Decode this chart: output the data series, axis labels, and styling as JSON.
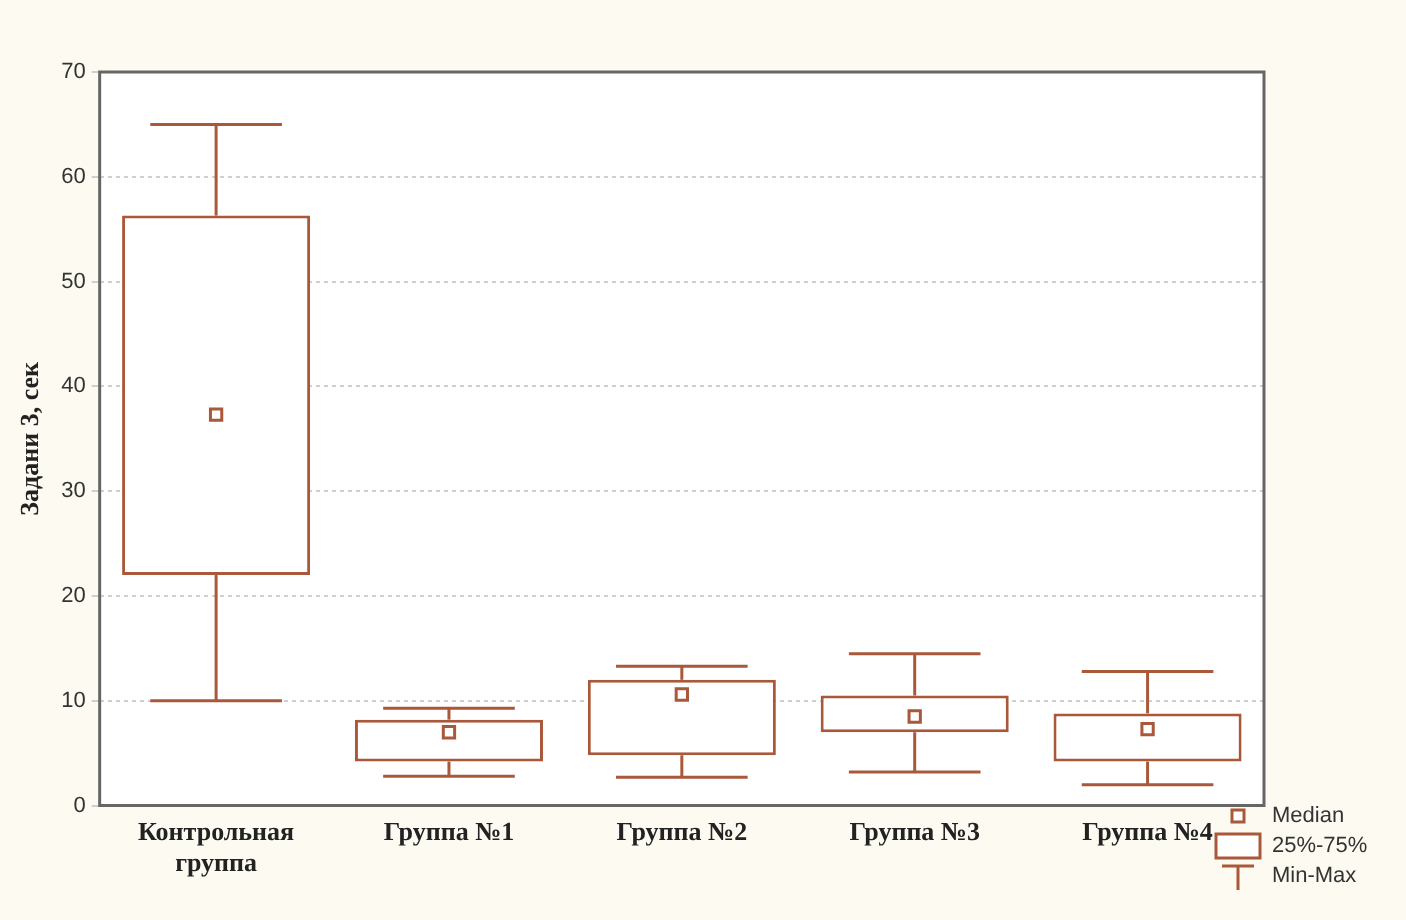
{
  "chart_data": {
    "type": "box",
    "ylabel": "Задани 3, сек",
    "categories": [
      "Контрольная группа",
      "Группа №1",
      "Группа №2",
      "Группа №3",
      "Группа №4"
    ],
    "boxes": [
      {
        "low": 10,
        "q1": 22,
        "median": 37.3,
        "q3": 56.3,
        "high": 65
      },
      {
        "low": 2.8,
        "q1": 4.2,
        "median": 7,
        "q3": 8.2,
        "high": 9.3
      },
      {
        "low": 2.7,
        "q1": 4.8,
        "median": 10.6,
        "q3": 12,
        "high": 13.3
      },
      {
        "low": 3.2,
        "q1": 7,
        "median": 8.5,
        "q3": 10.5,
        "high": 14.5
      },
      {
        "low": 2,
        "q1": 4.2,
        "median": 7.3,
        "q3": 8.8,
        "high": 12.8
      }
    ],
    "color": "#a9583a",
    "ylim": [
      0,
      70
    ],
    "yticks": [
      0,
      10,
      20,
      30,
      40,
      50,
      60,
      70
    ],
    "grid": "y",
    "marker": "square",
    "annotations": [
      "Median",
      "25%-75%",
      "Min-Max"
    ]
  }
}
